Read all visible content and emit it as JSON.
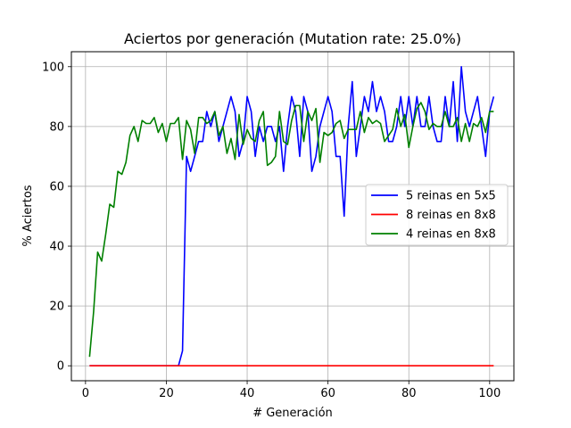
{
  "chart_data": {
    "type": "line",
    "title": "Aciertos por generación (Mutation rate: 25.0%)",
    "xlabel": "# Generación",
    "ylabel": "% Aciertos",
    "xlim": [
      -3.5,
      106
    ],
    "ylim": [
      -5,
      105
    ],
    "xticks": [
      0,
      20,
      40,
      60,
      80,
      100
    ],
    "yticks": [
      0,
      20,
      40,
      60,
      80,
      100
    ],
    "grid": true,
    "legend_position": "center-right",
    "series": [
      {
        "name": "5 reinas en 5x5",
        "color": "#0000ff",
        "x": [
          1,
          2,
          3,
          4,
          5,
          6,
          7,
          8,
          9,
          10,
          11,
          12,
          13,
          14,
          15,
          16,
          17,
          18,
          19,
          20,
          21,
          22,
          23,
          24,
          25,
          26,
          27,
          28,
          29,
          30,
          31,
          32,
          33,
          34,
          35,
          36,
          37,
          38,
          39,
          40,
          41,
          42,
          43,
          44,
          45,
          46,
          47,
          48,
          49,
          50,
          51,
          52,
          53,
          54,
          55,
          56,
          57,
          58,
          59,
          60,
          61,
          62,
          63,
          64,
          65,
          66,
          67,
          68,
          69,
          70,
          71,
          72,
          73,
          74,
          75,
          76,
          77,
          78,
          79,
          80,
          81,
          82,
          83,
          84,
          85,
          86,
          87,
          88,
          89,
          90,
          91,
          92,
          93,
          94,
          95,
          96,
          97,
          98,
          99,
          100,
          101
        ],
        "values": [
          0,
          0,
          0,
          0,
          0,
          0,
          0,
          0,
          0,
          0,
          0,
          0,
          0,
          0,
          0,
          0,
          0,
          0,
          0,
          0,
          0,
          0,
          0,
          5,
          70,
          65,
          70,
          75,
          75,
          85,
          80,
          85,
          75,
          80,
          85,
          90,
          85,
          70,
          75,
          90,
          85,
          70,
          80,
          75,
          80,
          80,
          75,
          80,
          65,
          80,
          90,
          85,
          70,
          90,
          85,
          65,
          70,
          80,
          85,
          90,
          85,
          70,
          70,
          50,
          80,
          95,
          70,
          80,
          90,
          85,
          95,
          85,
          90,
          85,
          75,
          75,
          80,
          90,
          80,
          90,
          80,
          90,
          80,
          80,
          90,
          80,
          75,
          75,
          90,
          80,
          95,
          75,
          100,
          85,
          80,
          85,
          90,
          80,
          70,
          85,
          90
        ]
      },
      {
        "name": "8 reinas en 8x8",
        "color": "#ff0000",
        "x": [
          1,
          2,
          3,
          4,
          5,
          6,
          7,
          8,
          9,
          10,
          11,
          12,
          13,
          14,
          15,
          16,
          17,
          18,
          19,
          20,
          21,
          22,
          23,
          24,
          25,
          26,
          27,
          28,
          29,
          30,
          31,
          32,
          33,
          34,
          35,
          36,
          37,
          38,
          39,
          40,
          41,
          42,
          43,
          44,
          45,
          46,
          47,
          48,
          49,
          50,
          51,
          52,
          53,
          54,
          55,
          56,
          57,
          58,
          59,
          60,
          61,
          62,
          63,
          64,
          65,
          66,
          67,
          68,
          69,
          70,
          71,
          72,
          73,
          74,
          75,
          76,
          77,
          78,
          79,
          80,
          81,
          82,
          83,
          84,
          85,
          86,
          87,
          88,
          89,
          90,
          91,
          92,
          93,
          94,
          95,
          96,
          97,
          98,
          99,
          100,
          101
        ],
        "values": [
          0,
          0,
          0,
          0,
          0,
          0,
          0,
          0,
          0,
          0,
          0,
          0,
          0,
          0,
          0,
          0,
          0,
          0,
          0,
          0,
          0,
          0,
          0,
          0,
          0,
          0,
          0,
          0,
          0,
          0,
          0,
          0,
          0,
          0,
          0,
          0,
          0,
          0,
          0,
          0,
          0,
          0,
          0,
          0,
          0,
          0,
          0,
          0,
          0,
          0,
          0,
          0,
          0,
          0,
          0,
          0,
          0,
          0,
          0,
          0,
          0,
          0,
          0,
          0,
          0,
          0,
          0,
          0,
          0,
          0,
          0,
          0,
          0,
          0,
          0,
          0,
          0,
          0,
          0,
          0,
          0,
          0,
          0,
          0,
          0,
          0,
          0,
          0,
          0,
          0,
          0,
          0,
          0,
          0,
          0,
          0,
          0,
          0,
          0,
          0,
          0
        ]
      },
      {
        "name": "4 reinas en 8x8",
        "color": "#008000",
        "x": [
          1,
          2,
          3,
          4,
          5,
          6,
          7,
          8,
          9,
          10,
          11,
          12,
          13,
          14,
          15,
          16,
          17,
          18,
          19,
          20,
          21,
          22,
          23,
          24,
          25,
          26,
          27,
          28,
          29,
          30,
          31,
          32,
          33,
          34,
          35,
          36,
          37,
          38,
          39,
          40,
          41,
          42,
          43,
          44,
          45,
          46,
          47,
          48,
          49,
          50,
          51,
          52,
          53,
          54,
          55,
          56,
          57,
          58,
          59,
          60,
          61,
          62,
          63,
          64,
          65,
          66,
          67,
          68,
          69,
          70,
          71,
          72,
          73,
          74,
          75,
          76,
          77,
          78,
          79,
          80,
          81,
          82,
          83,
          84,
          85,
          86,
          87,
          88,
          89,
          90,
          91,
          92,
          93,
          94,
          95,
          96,
          97,
          98,
          99,
          100,
          101
        ],
        "values": [
          3,
          18,
          38,
          35,
          44,
          54,
          53,
          65,
          64,
          68,
          77,
          80,
          75,
          82,
          81,
          81,
          83,
          78,
          81,
          75,
          81,
          81,
          83,
          69,
          82,
          79,
          71,
          83,
          83,
          81,
          82,
          85,
          77,
          80,
          71,
          76,
          69,
          84,
          74,
          79,
          76,
          75,
          82,
          85,
          67,
          68,
          70,
          85,
          75,
          74,
          82,
          87,
          87,
          75,
          85,
          82,
          86,
          68,
          78,
          77,
          78,
          81,
          82,
          76,
          79,
          79,
          79,
          85,
          78,
          83,
          81,
          82,
          81,
          75,
          77,
          79,
          86,
          80,
          84,
          73,
          80,
          86,
          88,
          85,
          79,
          81,
          80,
          80,
          85,
          80,
          80,
          83,
          75,
          81,
          75,
          81,
          80,
          83,
          78,
          85,
          85
        ]
      }
    ]
  }
}
